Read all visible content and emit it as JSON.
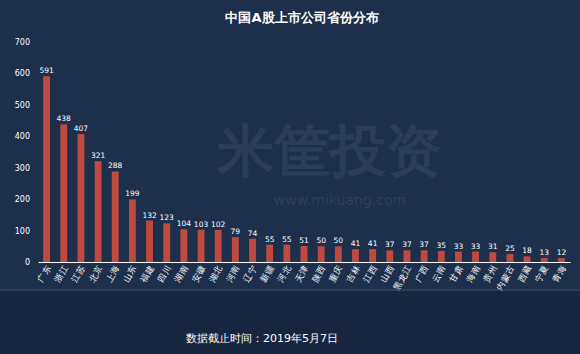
{
  "chart_data": {
    "type": "bar",
    "title": "中国A股上市公司省份分布",
    "categories": [
      "广东",
      "浙江",
      "江苏",
      "北京",
      "上海",
      "山东",
      "福建",
      "四川",
      "湖南",
      "安徽",
      "湖北",
      "河南",
      "辽宁",
      "新疆",
      "河北",
      "天津",
      "陕西",
      "重庆",
      "吉林",
      "江西",
      "山西",
      "黑龙江",
      "广西",
      "云南",
      "甘肃",
      "海南",
      "贵州",
      "内蒙古",
      "西藏",
      "宁夏",
      "青海"
    ],
    "values": [
      591,
      438,
      407,
      321,
      288,
      199,
      132,
      123,
      104,
      103,
      102,
      79,
      74,
      55,
      55,
      51,
      50,
      50,
      41,
      41,
      37,
      37,
      37,
      35,
      33,
      33,
      31,
      25,
      18,
      13,
      12
    ],
    "color": "#bf4a3f",
    "ylim": [
      0,
      700
    ],
    "yticks": [
      0,
      100,
      200,
      300,
      400,
      500,
      600,
      700
    ],
    "grid": false,
    "data_labels": true,
    "annotations": [
      "数据截止时间：2019年5月7日",
      "米筐投资",
      "www.mikuang.com"
    ]
  }
}
